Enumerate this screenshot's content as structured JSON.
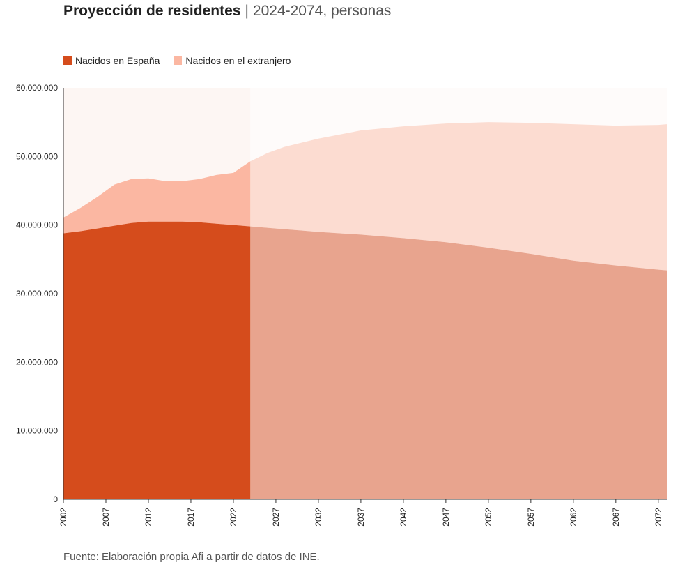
{
  "header": {
    "title": "Proyección de residentes",
    "separator": "|",
    "subtitle": "2024-2074, personas"
  },
  "legend": {
    "items": [
      {
        "label": "Nacidos en España",
        "color": "#d54c1c"
      },
      {
        "label": "Nacidos en el extranjero",
        "color": "#fbb7a2"
      }
    ]
  },
  "source": "Fuente: Elaboración propia Afi a partir de datos de INE.",
  "chart_data": {
    "type": "area",
    "stacked": true,
    "projection_start": 2024,
    "colors": {
      "spain_historical": "#d54c1c",
      "foreign_historical": "#fbb7a2",
      "spain_projection": "#e8a48e",
      "foreign_projection": "#fcdcd1",
      "background_historical": "#fdf6f3",
      "background_projection": "#fefbfa"
    },
    "x": [
      2002,
      2004,
      2006,
      2008,
      2010,
      2012,
      2014,
      2016,
      2018,
      2020,
      2022,
      2024,
      2026,
      2028,
      2030,
      2032,
      2037,
      2042,
      2047,
      2052,
      2057,
      2062,
      2067,
      2072,
      2073
    ],
    "series": [
      {
        "name": "Nacidos en España",
        "values": [
          38800000,
          39100000,
          39500000,
          39900000,
          40300000,
          40500000,
          40500000,
          40500000,
          40400000,
          40200000,
          40000000,
          39800000,
          39600000,
          39400000,
          39200000,
          39000000,
          38600000,
          38100000,
          37500000,
          36700000,
          35800000,
          34800000,
          34100000,
          33500000,
          33400000
        ]
      },
      {
        "name": "Nacidos en el extranjero",
        "values": [
          2300000,
          3400000,
          4600000,
          6000000,
          6400000,
          6300000,
          5900000,
          5900000,
          6300000,
          7100000,
          7600000,
          9500000,
          10900000,
          12000000,
          12800000,
          13600000,
          15200000,
          16300000,
          17300000,
          18300000,
          19100000,
          19900000,
          20400000,
          21100000,
          21300000
        ]
      }
    ],
    "ylim": [
      0,
      60000000
    ],
    "yticks": [
      "60.000.000",
      "50.000.000",
      "40.000.000",
      "30.000.000",
      "20.000.000",
      "10.000.000",
      "0"
    ],
    "ytick_values": [
      60000000,
      50000000,
      40000000,
      30000000,
      20000000,
      10000000,
      0
    ],
    "xticks": [
      "2002",
      "2007",
      "2012",
      "2017",
      "2022",
      "2027",
      "2032",
      "2037",
      "2042",
      "2047",
      "2052",
      "2057",
      "2062",
      "2067",
      "2072"
    ],
    "xlim": [
      2002,
      2073
    ],
    "grid": false
  }
}
